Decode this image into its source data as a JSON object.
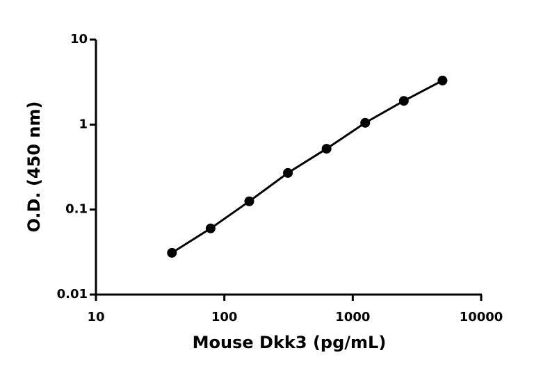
{
  "chart_data": {
    "type": "scatter",
    "x_label": "Mouse Dkk3 (pg/mL)",
    "y_label": "O.D. (450 nm)",
    "x": [
      39.06,
      78.125,
      156.25,
      312.5,
      625,
      1250,
      2500,
      5000
    ],
    "series": [
      {
        "color": "#000000",
        "values": [
          0.031,
          0.06,
          0.125,
          0.27,
          0.52,
          1.05,
          1.9,
          3.3
        ]
      }
    ],
    "xlim": [
      10,
      10000
    ],
    "xticks": [
      10,
      100,
      1000,
      10000
    ],
    "ylim": [
      0.01,
      10
    ],
    "yticks": [
      0.01,
      0.1,
      1,
      10
    ],
    "x_log": true,
    "y_log": true,
    "connect": true
  }
}
